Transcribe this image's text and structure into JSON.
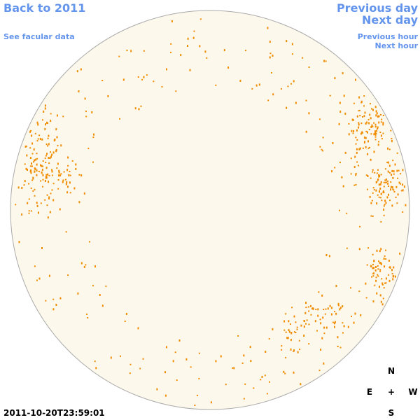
{
  "navigation": {
    "back": "Back to 2011",
    "facular": "See facular data",
    "previous_day": "Previous day",
    "next_day": "Next day",
    "previous_hour": "Previous hour",
    "next_hour": "Next hour"
  },
  "timestamp": "2011-10-20T23:59:01",
  "compass": {
    "north": "N",
    "east": "E",
    "center": "+",
    "west": "W",
    "south": "S"
  }
}
